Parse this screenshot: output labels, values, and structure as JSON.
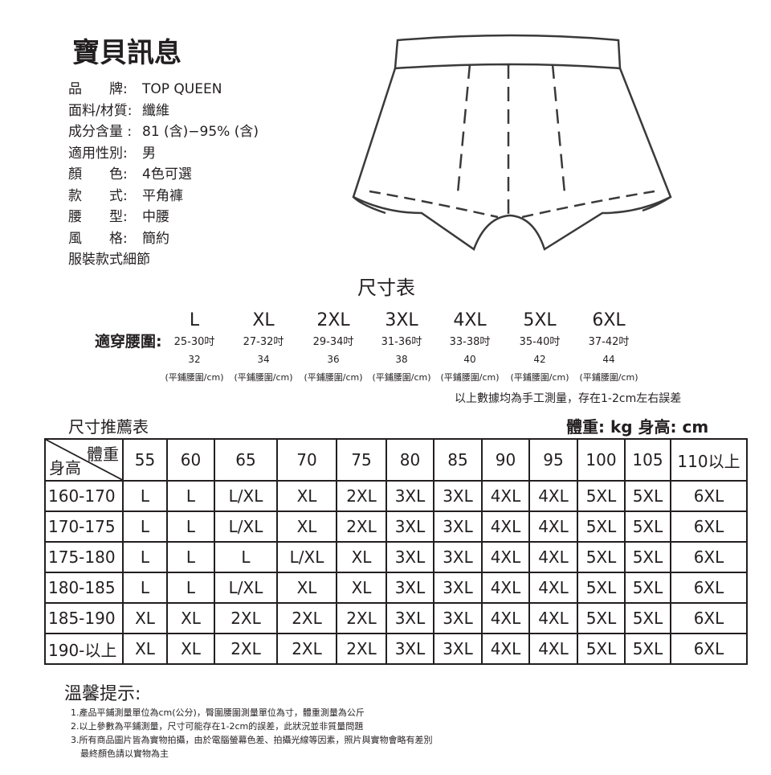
{
  "title": "寶貝訊息",
  "info": [
    {
      "label": "品　　牌:",
      "value": "TOP QUEEN"
    },
    {
      "label": "面料/材質:",
      "value": "纖維"
    },
    {
      "label": "成分含量 :",
      "value": "81 (含)−95% (含)"
    },
    {
      "label": "適用性別:",
      "value": "男"
    },
    {
      "label": "顏　　色:",
      "value": "4色可選"
    },
    {
      "label": "款　　式:",
      "value": "平角褲"
    },
    {
      "label": "腰　　型:",
      "value": "中腰"
    },
    {
      "label": "風　　格:",
      "value": "簡約"
    },
    {
      "label": "服裝款式細節",
      "value": ""
    }
  ],
  "size_chart": {
    "title": "尺寸表",
    "waist_label": "適穿腰圍:",
    "sizes": [
      {
        "size": "L",
        "range": "25-30吋",
        "flat": "32",
        "unit": "(平鋪腰圍/cm)"
      },
      {
        "size": "XL",
        "range": "27-32吋",
        "flat": "34",
        "unit": "(平鋪腰圍/cm)"
      },
      {
        "size": "2XL",
        "range": "29-34吋",
        "flat": "36",
        "unit": "(平鋪腰圍/cm)"
      },
      {
        "size": "3XL",
        "range": "31-36吋",
        "flat": "38",
        "unit": "(平鋪腰圍/cm)"
      },
      {
        "size": "4XL",
        "range": "33-38吋",
        "flat": "40",
        "unit": "(平鋪腰圍/cm)"
      },
      {
        "size": "5XL",
        "range": "35-40吋",
        "flat": "42",
        "unit": "(平鋪腰圍/cm)"
      },
      {
        "size": "6XL",
        "range": "37-42吋",
        "flat": "44",
        "unit": "(平鋪腰圍/cm)"
      }
    ],
    "note": "以上數據均為手工測量，存在1-2cm左右誤差"
  },
  "recommend": {
    "title": "尺寸推薦表",
    "units": "體重: kg  身高: cm",
    "corner_weight": "體重",
    "corner_height": "身高",
    "weights": [
      "55",
      "60",
      "65",
      "70",
      "75",
      "80",
      "85",
      "90",
      "95",
      "100",
      "105",
      "110以上"
    ],
    "rows": [
      {
        "height": "160-170",
        "sizes": [
          "L",
          "L",
          "L/XL",
          "XL",
          "2XL",
          "3XL",
          "3XL",
          "4XL",
          "4XL",
          "5XL",
          "5XL",
          "6XL"
        ]
      },
      {
        "height": "170-175",
        "sizes": [
          "L",
          "L",
          "L/XL",
          "XL",
          "2XL",
          "3XL",
          "3XL",
          "4XL",
          "4XL",
          "5XL",
          "5XL",
          "6XL"
        ]
      },
      {
        "height": "175-180",
        "sizes": [
          "L",
          "L",
          "L",
          "L/XL",
          "XL",
          "3XL",
          "3XL",
          "4XL",
          "4XL",
          "5XL",
          "5XL",
          "6XL"
        ]
      },
      {
        "height": "180-185",
        "sizes": [
          "L",
          "L",
          "L/XL",
          "XL",
          "XL",
          "3XL",
          "3XL",
          "4XL",
          "4XL",
          "5XL",
          "5XL",
          "6XL"
        ]
      },
      {
        "height": "185-190",
        "sizes": [
          "XL",
          "XL",
          "2XL",
          "2XL",
          "2XL",
          "3XL",
          "3XL",
          "4XL",
          "4XL",
          "5XL",
          "5XL",
          "6XL"
        ]
      },
      {
        "height": "190-以上",
        "sizes": [
          "XL",
          "XL",
          "2XL",
          "2XL",
          "2XL",
          "3XL",
          "3XL",
          "4XL",
          "4XL",
          "5XL",
          "5XL",
          "6XL"
        ]
      }
    ]
  },
  "tips": {
    "title": "溫馨提示:",
    "items": [
      "1.產品平鋪測量單位為cm(公分)，臀圍腰圍測量單位為寸，體重測量為公斤",
      "2.以上參數為平鋪測量，尺寸可能存在1-2cm的誤差，此狀況並非質量問題",
      "3.所有商品圖片皆為實物拍攝，由於電腦螢幕色差、拍攝光線等因素，照片與實物會略有差別",
      "最終顏色請以實物為主"
    ]
  }
}
